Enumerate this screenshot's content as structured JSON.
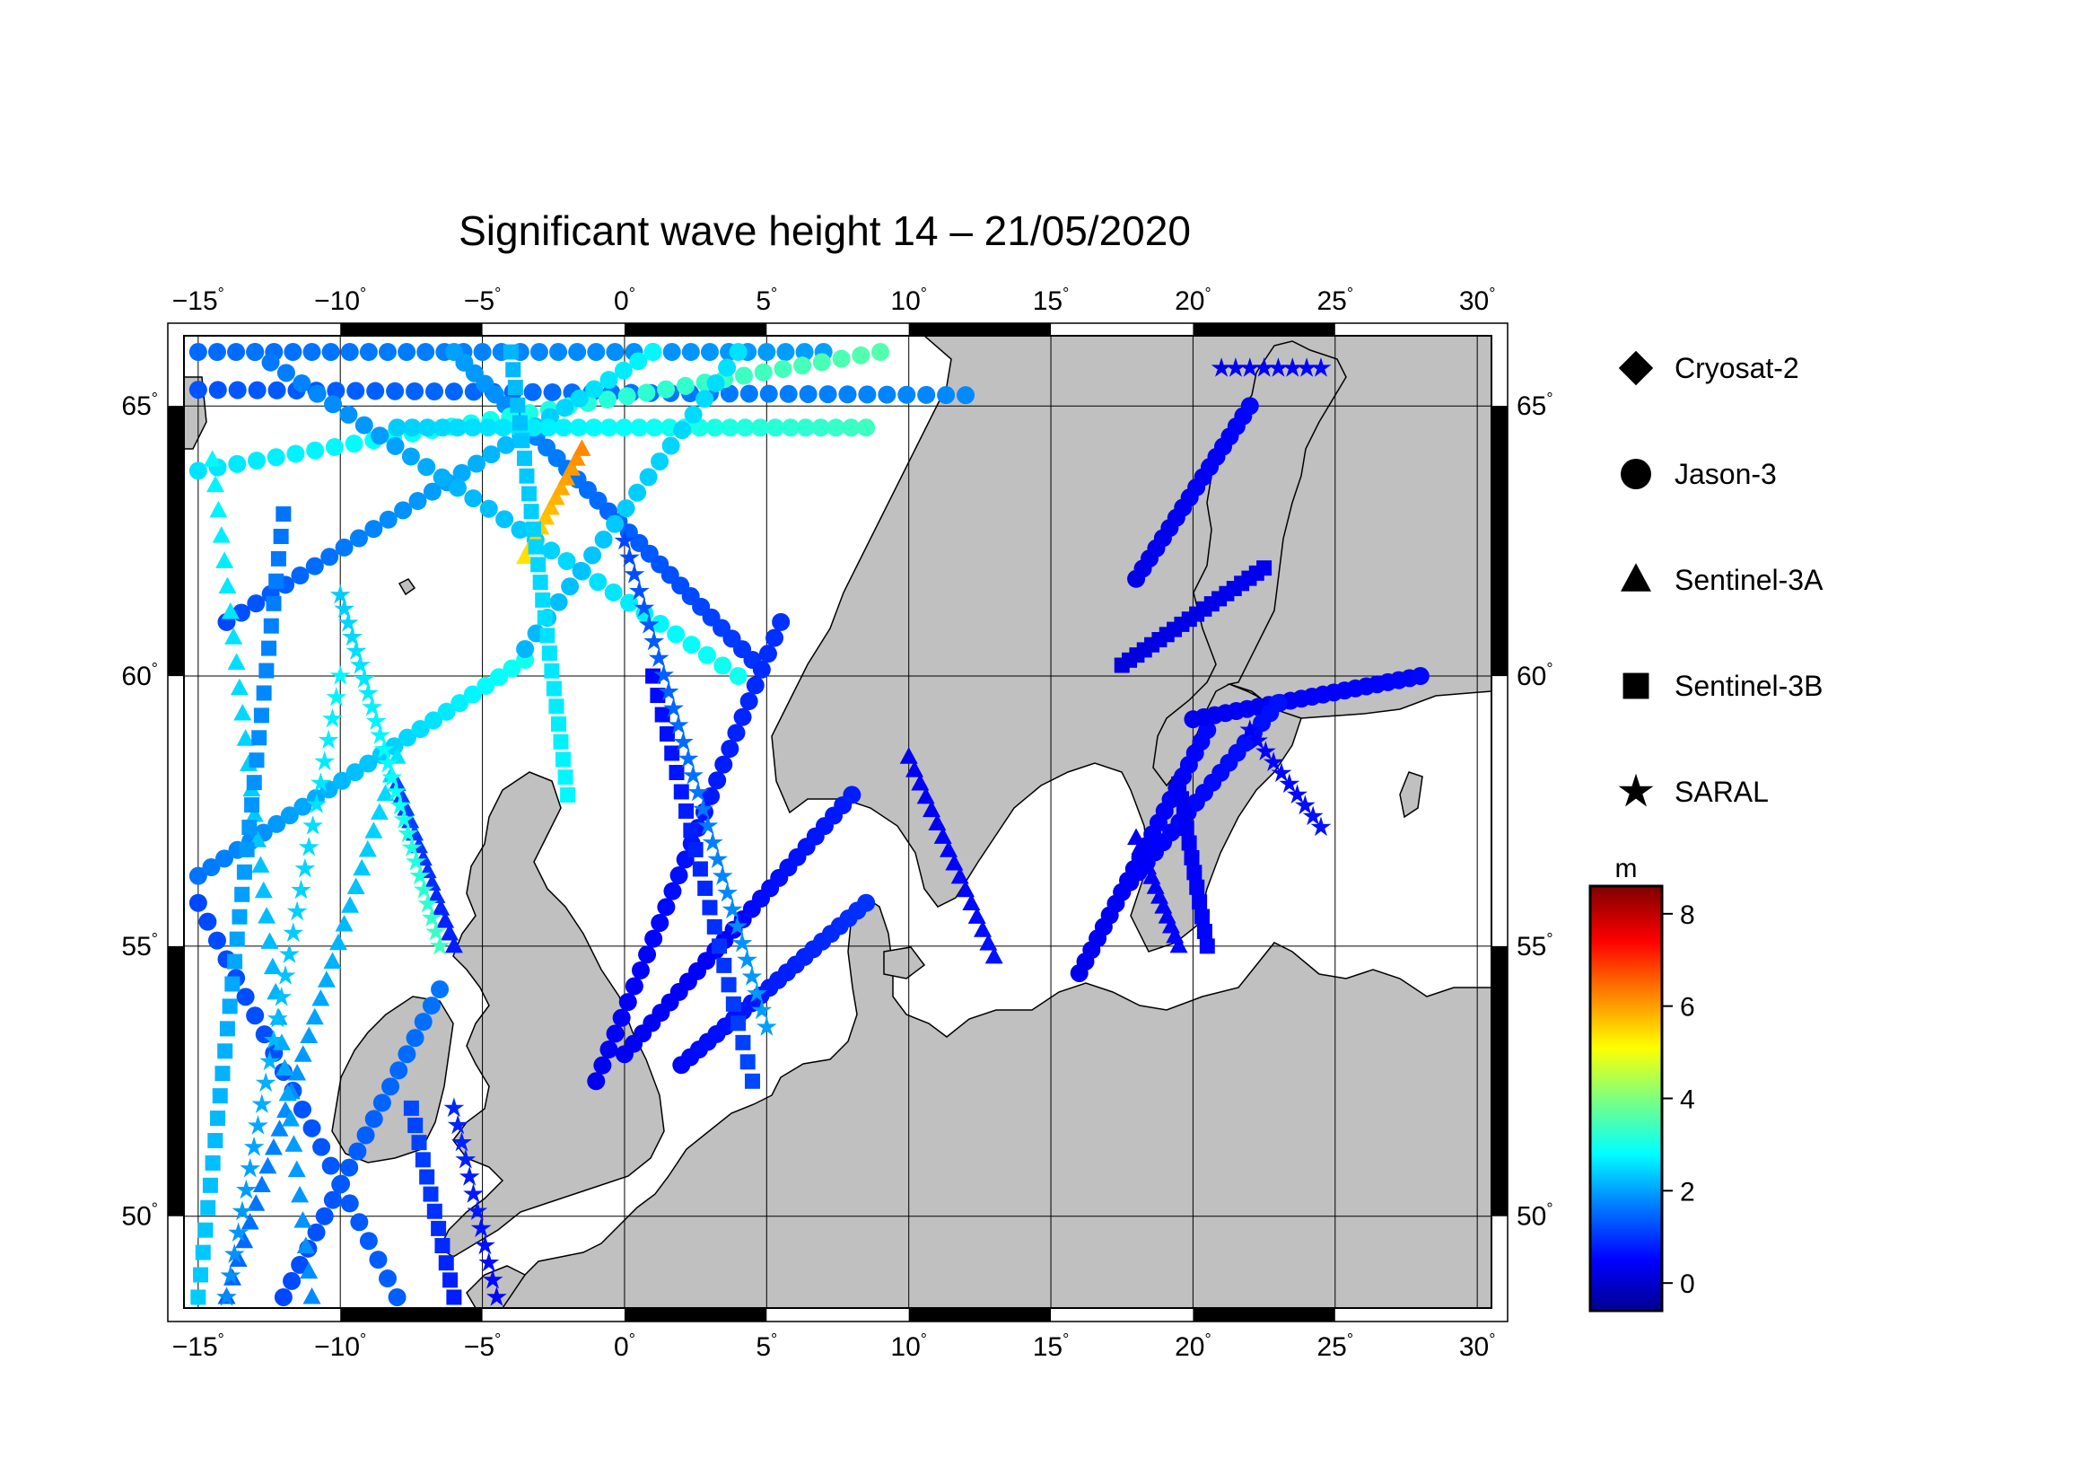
{
  "title": "Significant wave height 14 – 21/05/2020",
  "map": {
    "lon_range": [
      -15.5,
      30.5
    ],
    "lat_range": [
      48.3,
      66.3
    ],
    "lon_ticks": [
      {
        "value": -15,
        "label": "−15"
      },
      {
        "value": -10,
        "label": "−10"
      },
      {
        "value": -5,
        "label": "−5"
      },
      {
        "value": 0,
        "label": "0"
      },
      {
        "value": 5,
        "label": "5"
      },
      {
        "value": 10,
        "label": "10"
      },
      {
        "value": 15,
        "label": "15"
      },
      {
        "value": 20,
        "label": "20"
      },
      {
        "value": 25,
        "label": "25"
      },
      {
        "value": 30,
        "label": "30"
      }
    ],
    "lat_ticks": [
      {
        "value": 50,
        "label": "50"
      },
      {
        "value": 55,
        "label": "55"
      },
      {
        "value": 60,
        "label": "60"
      },
      {
        "value": 65,
        "label": "65"
      }
    ],
    "degree_symbol": "°",
    "land_color": "#c0c0c0",
    "sea_color": "#ffffff"
  },
  "legend": [
    {
      "name": "Cryosat-2",
      "marker": "diamond"
    },
    {
      "name": "Jason-3",
      "marker": "circle"
    },
    {
      "name": "Sentinel-3A",
      "marker": "triangle"
    },
    {
      "name": "Sentinel-3B",
      "marker": "square"
    },
    {
      "name": "SARAL",
      "marker": "star"
    }
  ],
  "colorbar": {
    "unit": "m",
    "range": [
      -0.6,
      8.6
    ],
    "ticks": [
      {
        "value": 0,
        "label": "0"
      },
      {
        "value": 2,
        "label": "2"
      },
      {
        "value": 4,
        "label": "4"
      },
      {
        "value": 6,
        "label": "6"
      },
      {
        "value": 8,
        "label": "8"
      }
    ],
    "colormap": [
      "#00008f",
      "#0000ff",
      "#007fff",
      "#00ffff",
      "#7fff7f",
      "#ffff00",
      "#ff7f00",
      "#ff0000",
      "#7f0000"
    ]
  },
  "chart_data": {
    "type": "scatter",
    "title": "Significant wave height 14 – 21/05/2020",
    "colorbar_label": "m",
    "tracks": [
      {
        "satellite": "Jason-3",
        "marker": "circle",
        "from": [
          -15,
          66.0
        ],
        "to": [
          7.0,
          66.0
        ],
        "hs": [
          1.5,
          2.0
        ],
        "n": 34
      },
      {
        "satellite": "Jason-3",
        "marker": "circle",
        "from": [
          -15,
          65.3
        ],
        "to": [
          12.0,
          65.2
        ],
        "hs": [
          1.3,
          1.8
        ],
        "n": 40
      },
      {
        "satellite": "Jason-3",
        "marker": "circle",
        "from": [
          -6,
          66.0
        ],
        "to": [
          4.5,
          60.3
        ],
        "hs": [
          2.0,
          1.0
        ],
        "n": 30
      },
      {
        "satellite": "Jason-3",
        "marker": "circle",
        "from": [
          -15,
          63.8
        ],
        "to": [
          9.0,
          66.0
        ],
        "hs": [
          2.6,
          3.6
        ],
        "n": 36
      },
      {
        "satellite": "Jason-3",
        "marker": "circle",
        "from": [
          -14,
          61.0
        ],
        "to": [
          1.0,
          66.0
        ],
        "hs": [
          1.2,
          2.8
        ],
        "n": 30
      },
      {
        "satellite": "Jason-3",
        "marker": "circle",
        "from": [
          -13,
          66.0
        ],
        "to": [
          4.0,
          60.0
        ],
        "hs": [
          1.6,
          3.0
        ],
        "n": 32
      },
      {
        "satellite": "Jason-3",
        "marker": "circle",
        "from": [
          -8,
          64.6
        ],
        "to": [
          8.5,
          64.6
        ],
        "hs": [
          2.4,
          3.4
        ],
        "n": 32
      },
      {
        "satellite": "Jason-3",
        "marker": "circle",
        "from": [
          -15,
          56.3
        ],
        "to": [
          -3.5,
          60.3
        ],
        "hs": [
          1.6,
          3.0
        ],
        "n": 26
      },
      {
        "satellite": "Jason-3",
        "marker": "circle",
        "from": [
          -15,
          55.8
        ],
        "to": [
          -8.0,
          48.5
        ],
        "hs": [
          1.2,
          1.4
        ],
        "n": 22
      },
      {
        "satellite": "Jason-3",
        "marker": "circle",
        "from": [
          -12,
          48.5
        ],
        "to": [
          -6.5,
          54.2
        ],
        "hs": [
          1.2,
          1.6
        ],
        "n": 20
      },
      {
        "satellite": "Jason-3",
        "marker": "circle",
        "from": [
          -3.5,
          60.5
        ],
        "to": [
          4.0,
          66.0
        ],
        "hs": [
          2.2,
          2.6
        ],
        "n": 20
      },
      {
        "satellite": "Jason-3",
        "marker": "circle",
        "from": [
          -1,
          52.5
        ],
        "to": [
          5.5,
          61.0
        ],
        "hs": [
          0.4,
          1.0
        ],
        "n": 30
      },
      {
        "satellite": "Jason-3",
        "marker": "circle",
        "from": [
          0,
          53.0
        ],
        "to": [
          8.0,
          57.8
        ],
        "hs": [
          0.4,
          0.8
        ],
        "n": 26
      },
      {
        "satellite": "Jason-3",
        "marker": "circle",
        "from": [
          2,
          52.8
        ],
        "to": [
          8.5,
          55.8
        ],
        "hs": [
          0.6,
          1.0
        ],
        "n": 22
      },
      {
        "satellite": "Jason-3",
        "marker": "circle",
        "from": [
          16,
          54.5
        ],
        "to": [
          20.5,
          59.0
        ],
        "hs": [
          0.4,
          0.6
        ],
        "n": 22
      },
      {
        "satellite": "Jason-3",
        "marker": "circle",
        "from": [
          20,
          59.2
        ],
        "to": [
          28.0,
          60.0
        ],
        "hs": [
          0.4,
          0.6
        ],
        "n": 22
      },
      {
        "satellite": "Jason-3",
        "marker": "circle",
        "from": [
          17.5,
          56.0
        ],
        "to": [
          23.0,
          59.5
        ],
        "hs": [
          0.5,
          0.7
        ],
        "n": 20
      },
      {
        "satellite": "Jason-3",
        "marker": "circle",
        "from": [
          18,
          61.8
        ],
        "to": [
          22.0,
          65.0
        ],
        "hs": [
          0.3,
          0.6
        ],
        "n": 18
      },
      {
        "satellite": "Sentinel-3A",
        "marker": "triangle",
        "from": [
          -14,
          48.5
        ],
        "to": [
          -8.0,
          58.5
        ],
        "hs": [
          1.4,
          2.6
        ],
        "n": 30
      },
      {
        "satellite": "Sentinel-3A",
        "marker": "triangle",
        "from": [
          -11,
          48.5
        ],
        "to": [
          -14.5,
          64.0
        ],
        "hs": [
          1.8,
          2.8
        ],
        "n": 34
      },
      {
        "satellite": "Sentinel-3A",
        "marker": "triangle",
        "from": [
          -3.5,
          62.2
        ],
        "to": [
          -1.5,
          64.2
        ],
        "hs": [
          5.4,
          6.2
        ],
        "n": 12
      },
      {
        "satellite": "Sentinel-3A",
        "marker": "triangle",
        "from": [
          -6,
          55.0
        ],
        "to": [
          -8.0,
          58.0
        ],
        "hs": [
          0.8,
          1.2
        ],
        "n": 14
      },
      {
        "satellite": "Sentinel-3A",
        "marker": "triangle",
        "from": [
          10,
          58.5
        ],
        "to": [
          13.0,
          54.8
        ],
        "hs": [
          0.4,
          0.7
        ],
        "n": 16
      },
      {
        "satellite": "Sentinel-3A",
        "marker": "triangle",
        "from": [
          18,
          57.0
        ],
        "to": [
          19.5,
          55.0
        ],
        "hs": [
          0.4,
          0.6
        ],
        "n": 12
      },
      {
        "satellite": "Sentinel-3B",
        "marker": "square",
        "from": [
          -12,
          63.0
        ],
        "to": [
          -15.0,
          48.5
        ],
        "hs": [
          1.6,
          2.4
        ],
        "n": 36
      },
      {
        "satellite": "Sentinel-3B",
        "marker": "square",
        "from": [
          -4,
          66.0
        ],
        "to": [
          -2.0,
          57.8
        ],
        "hs": [
          2.2,
          2.8
        ],
        "n": 26
      },
      {
        "satellite": "Sentinel-3B",
        "marker": "square",
        "from": [
          1,
          60.0
        ],
        "to": [
          4.5,
          52.5
        ],
        "hs": [
          0.6,
          1.2
        ],
        "n": 22
      },
      {
        "satellite": "Sentinel-3B",
        "marker": "square",
        "from": [
          -6,
          48.5
        ],
        "to": [
          -7.5,
          52.0
        ],
        "hs": [
          0.8,
          1.2
        ],
        "n": 12
      },
      {
        "satellite": "Sentinel-3B",
        "marker": "square",
        "from": [
          17.5,
          60.2
        ],
        "to": [
          22.5,
          62.0
        ],
        "hs": [
          0.2,
          0.4
        ],
        "n": 20
      },
      {
        "satellite": "Sentinel-3B",
        "marker": "square",
        "from": [
          19.5,
          58.0
        ],
        "to": [
          20.5,
          55.0
        ],
        "hs": [
          0.4,
          0.6
        ],
        "n": 12
      },
      {
        "satellite": "SARAL",
        "marker": "star",
        "from": [
          -14,
          48.5
        ],
        "to": [
          -10.0,
          60.0
        ],
        "hs": [
          1.8,
          2.8
        ],
        "n": 30
      },
      {
        "satellite": "SARAL",
        "marker": "star",
        "from": [
          -10,
          61.5
        ],
        "to": [
          -6.5,
          55.0
        ],
        "hs": [
          2.4,
          3.4
        ],
        "n": 26
      },
      {
        "satellite": "SARAL",
        "marker": "star",
        "from": [
          0,
          62.5
        ],
        "to": [
          5.0,
          53.5
        ],
        "hs": [
          1.2,
          2.0
        ],
        "n": 30
      },
      {
        "satellite": "SARAL",
        "marker": "star",
        "from": [
          -4.5,
          48.5
        ],
        "to": [
          -6.0,
          52.0
        ],
        "hs": [
          0.6,
          0.9
        ],
        "n": 12
      },
      {
        "satellite": "SARAL",
        "marker": "star",
        "from": [
          22,
          59.0
        ],
        "to": [
          24.5,
          57.2
        ],
        "hs": [
          0.5,
          0.7
        ],
        "n": 10
      },
      {
        "satellite": "SARAL",
        "marker": "star",
        "from": [
          21,
          65.7
        ],
        "to": [
          24.5,
          65.7
        ],
        "hs": [
          0.4,
          0.6
        ],
        "n": 8
      }
    ]
  }
}
